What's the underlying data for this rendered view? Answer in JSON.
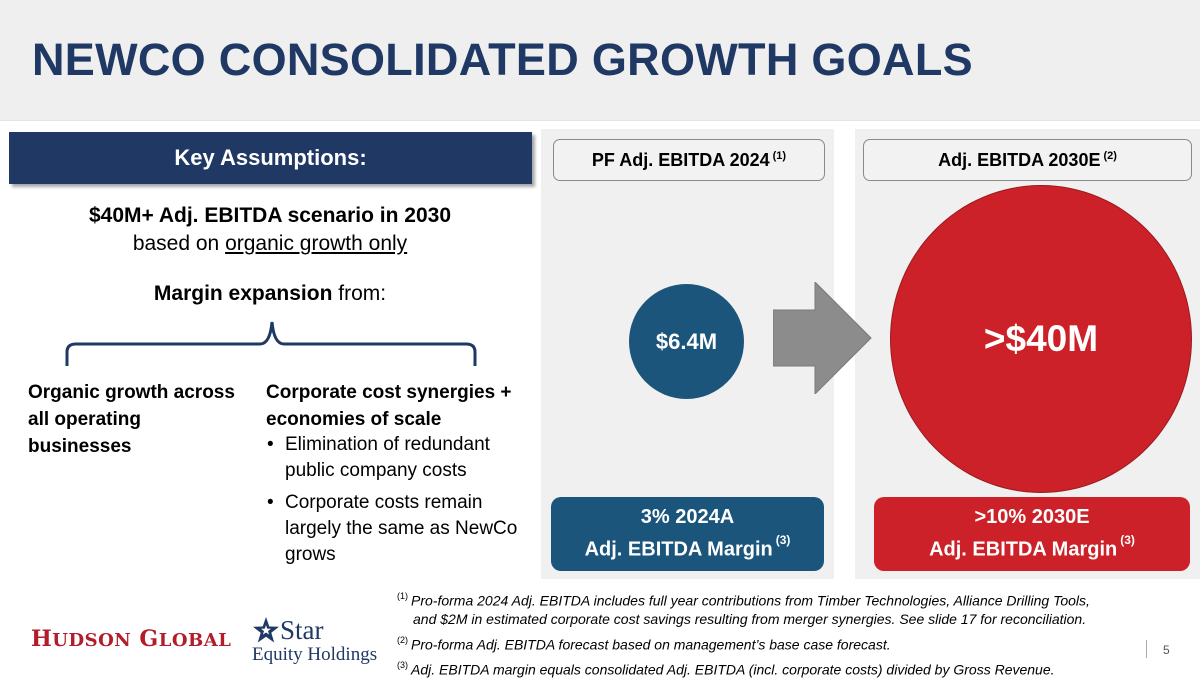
{
  "slide": {
    "title": "NEWCO CONSOLIDATED GROWTH GOALS",
    "page_number": "5"
  },
  "assumptions": {
    "header": "Key Assumptions:",
    "scenario_bold": "$40M+ Adj. EBITDA scenario in 2030",
    "scenario_prefix": "based on ",
    "scenario_underlined": "organic growth only",
    "margin_bold": "Margin expansion",
    "margin_rest": " from:",
    "left_column": "Organic growth across all operating businesses",
    "right_column": "Corporate cost synergies + economies of scale",
    "bullets": [
      "Elimination of redundant public company costs",
      "Corporate costs remain largely the same as NewCo grows"
    ],
    "bullet_glyph": "•"
  },
  "panels": {
    "left": {
      "header": "PF Adj. EBITDA 2024",
      "header_ref": "(1)",
      "value": "$6.4M",
      "margin_line1": "3% 2024A",
      "margin_line2": "Adj. EBITDA Margin",
      "margin_ref": "(3)"
    },
    "right": {
      "header": "Adj. EBITDA 2030E",
      "header_ref": "(2)",
      "value": ">$40M",
      "margin_line1": ">10% 2030E",
      "margin_line2": "Adj. EBITDA Margin",
      "margin_ref": "(3)"
    }
  },
  "footnotes": [
    {
      "ref": "(1)",
      "text": "Pro-forma 2024 Adj. EBITDA includes full year contributions from Timber Technologies, Alliance Drilling Tools,",
      "continuation": "and $2M in estimated corporate cost savings resulting from merger synergies. See slide 17 for reconciliation."
    },
    {
      "ref": "(2)",
      "text": "Pro-forma Adj. EBITDA forecast based on management’s base case forecast."
    },
    {
      "ref": "(3)",
      "text": "Adj. EBITDA margin equals consolidated Adj. EBITDA (incl. corporate costs) divided by Gross Revenue."
    }
  ],
  "logos": {
    "hudson_first_initial": "H",
    "hudson_first_rest": "UDSON",
    "hudson_second_initial": "G",
    "hudson_second_rest": "LOBAL",
    "star_word": "Star",
    "star_subtitle": "Equity Holdings"
  },
  "colors": {
    "navy": "#1f3864",
    "blue": "#1b557c",
    "red": "#cc2128",
    "panel_bg": "#f0f0f0",
    "arrow_gray": "#8c8c8c"
  }
}
